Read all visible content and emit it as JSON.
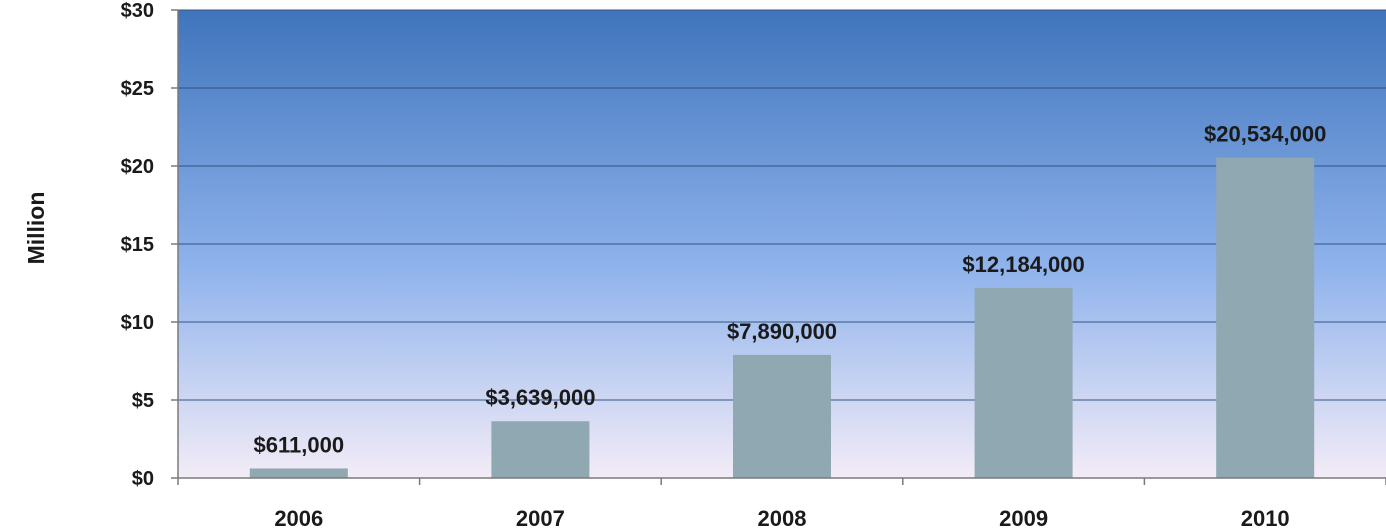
{
  "chart_data": {
    "type": "bar",
    "title": "",
    "xlabel": "",
    "ylabel": "Million",
    "categories": [
      "2006",
      "2007",
      "2008",
      "2009",
      "2010"
    ],
    "values": [
      0.611,
      3.639,
      7.89,
      12.184,
      20.534
    ],
    "data_labels": [
      "$611,000",
      "$3,639,000",
      "$7,890,000",
      "$12,184,000",
      "$20,534,000"
    ],
    "yticks": [
      0,
      5,
      10,
      15,
      20,
      25,
      30
    ],
    "ytick_labels": [
      "$0",
      "$5",
      "$10",
      "$15",
      "$20",
      "$25",
      "$30"
    ],
    "ylim": [
      0,
      30
    ],
    "grid": true,
    "legend": "none",
    "colors": {
      "bar": "#8FA8B2",
      "plot_top": "#3F74BC",
      "plot_mid": "#8FB3EC",
      "plot_bottom": "#F3ECF7",
      "gridline": "#2D4F7C",
      "axis": "#7A7A7A"
    }
  }
}
